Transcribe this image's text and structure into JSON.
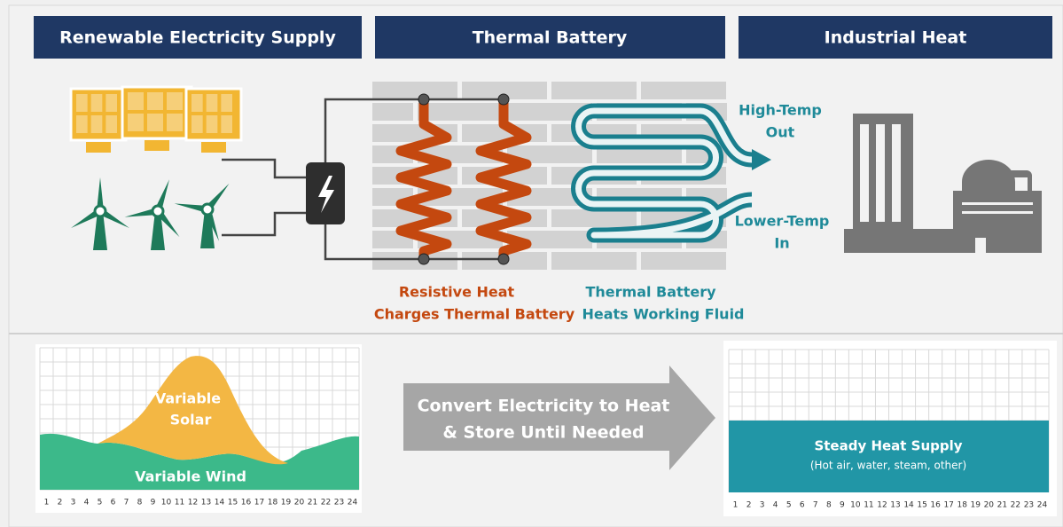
{
  "sections": [
    "Renewable Electricity Supply",
    "Thermal Battery",
    "Industrial Heat"
  ],
  "resistive_label": [
    "Resistive Heat",
    "Charges Thermal Battery"
  ],
  "battery_label": [
    "Thermal Battery",
    "Heats Working Fluid"
  ],
  "outlet_label": [
    "High-Temp",
    "Out"
  ],
  "inlet_label": [
    "Lower-Temp",
    "In"
  ],
  "left_chart": {
    "solar_label": [
      "Variable",
      "Solar"
    ],
    "wind_label": "Variable Wind",
    "hours": [
      1,
      2,
      3,
      4,
      5,
      6,
      7,
      8,
      9,
      10,
      11,
      12,
      13,
      14,
      15,
      16,
      17,
      18,
      19,
      20,
      21,
      22,
      23,
      24
    ]
  },
  "arrow_label": [
    "Convert Electricity to Heat",
    "& Store Until Needed"
  ],
  "right_chart": {
    "title": "Steady Heat Supply",
    "subtitle": "(Hot air, water, steam, other)",
    "hours": [
      1,
      2,
      3,
      4,
      5,
      6,
      7,
      8,
      9,
      10,
      11,
      12,
      13,
      14,
      15,
      16,
      17,
      18,
      19,
      20,
      21,
      22,
      23,
      24
    ]
  }
}
